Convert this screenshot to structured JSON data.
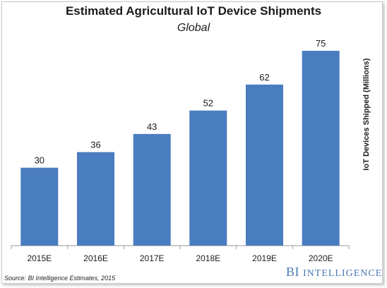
{
  "chart_data": {
    "type": "bar",
    "title": "Estimated Agricultural IoT Device Shipments",
    "subtitle": "Global",
    "categories": [
      "2015E",
      "2016E",
      "2017E",
      "2018E",
      "2019E",
      "2020E"
    ],
    "values": [
      30,
      36,
      43,
      52,
      62,
      75
    ],
    "data_labels": [
      "30",
      "36",
      "43",
      "52",
      "62",
      "75"
    ],
    "xlabel": "",
    "ylabel": "IoT Devices Shipped (Millions)",
    "ylim": [
      0,
      80
    ],
    "grid": false,
    "legend": "none",
    "bar_color": "#4a7cc0"
  },
  "footer": {
    "source": "Source: BI Intelligence Estimates, 2015",
    "brand_prefix": "BI",
    "brand_rest": "INTELLIGENCE"
  }
}
